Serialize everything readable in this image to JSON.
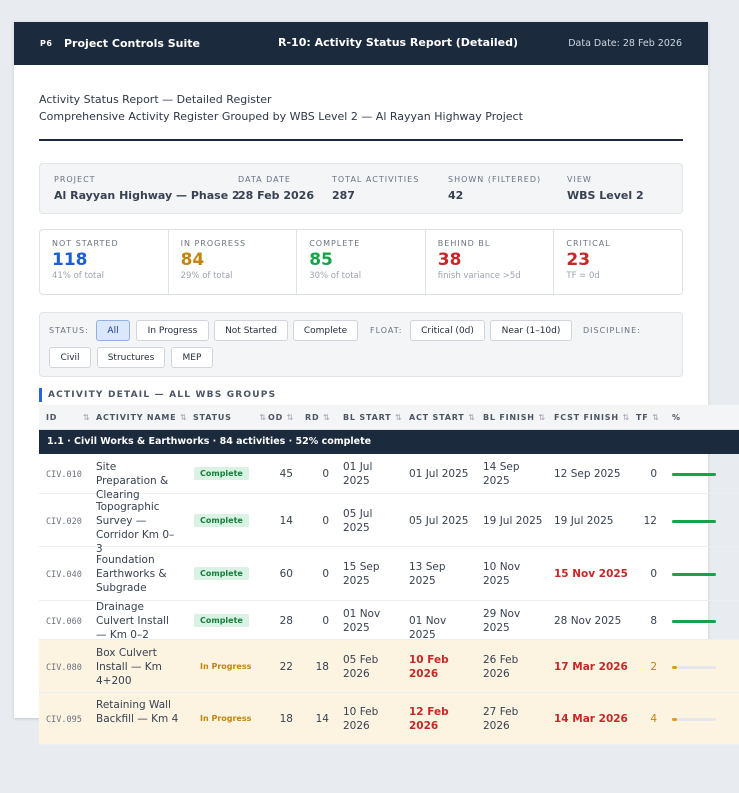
{
  "app": {
    "logo": "P6",
    "name": "Project Controls Suite",
    "report_title": "R-10: Activity Status Report (Detailed)",
    "data_date": "Data Date: 28 Feb 2026"
  },
  "header": {
    "line1": "Activity Status Report — Detailed Register",
    "line2": "Comprehensive Activity Register Grouped by WBS Level 2 — Al Rayyan Highway Project"
  },
  "summary": {
    "project_label": "PROJECT",
    "project_value": "Al Rayyan Highway — Phase 2",
    "date_label": "DATA DATE",
    "date_value": "28 Feb 2026",
    "total_label": "TOTAL ACTIVITIES",
    "total_value": "287",
    "shown_label": "SHOWN (FILTERED)",
    "shown_value": "42",
    "view_label": "VIEW",
    "view_value": "WBS Level 2"
  },
  "stats": [
    {
      "label": "NOT STARTED",
      "value": "118",
      "sub": "41% of total",
      "color": "#1d5fd1"
    },
    {
      "label": "IN PROGRESS",
      "value": "84",
      "sub": "29% of total",
      "color": "#c2850d"
    },
    {
      "label": "COMPLETE",
      "value": "85",
      "sub": "30% of total",
      "color": "#16a34a"
    },
    {
      "label": "BEHIND BL",
      "value": "38",
      "sub": "finish variance >5d",
      "color": "#c62828"
    },
    {
      "label": "CRITICAL",
      "value": "23",
      "sub": "TF = 0d",
      "color": "#c62828"
    }
  ],
  "filters": {
    "status_label": "STATUS:",
    "status": [
      "All",
      "In Progress",
      "Not Started",
      "Complete"
    ],
    "float_label": "FLOAT:",
    "float": [
      "Critical (0d)",
      "Near (1–10d)"
    ],
    "discipline_label": "DISCIPLINE:",
    "discipline": [
      "Civil",
      "Structures",
      "MEP"
    ]
  },
  "section_title": "ACTIVITY DETAIL — ALL WBS GROUPS",
  "columns": [
    "ID",
    "ACTIVITY NAME",
    "STATUS",
    "OD",
    "RD",
    "BL START",
    "ACT START",
    "BL FINISH",
    "FCST FINISH",
    "TF",
    "%"
  ],
  "group": "1.1 · Civil Works & Earthworks · 84 activities · 52% complete",
  "rows": [
    {
      "id": "CIV.010",
      "name": "Site Preparation & Clearing",
      "status": "Complete",
      "od": "45",
      "rd": "0",
      "bl_start": "01 Jul 2025",
      "act_start": "01 Jul 2025",
      "bl_finish": "14 Sep 2025",
      "fcst": "12 Sep 2025",
      "tf": "0",
      "pct": 100
    },
    {
      "id": "CIV.020",
      "name": "Topographic Survey — Corridor Km 0–3",
      "status": "Complete",
      "od": "14",
      "rd": "0",
      "bl_start": "05 Jul 2025",
      "act_start": "05 Jul 2025",
      "bl_finish": "19 Jul 2025",
      "fcst": "19 Jul 2025",
      "tf": "12",
      "pct": 100
    },
    {
      "id": "CIV.040",
      "name": "Foundation Earthworks & Subgrade",
      "status": "Complete",
      "od": "60",
      "rd": "0",
      "bl_start": "15 Sep 2025",
      "act_start": "13 Sep 2025",
      "bl_finish": "10 Nov 2025",
      "fcst": "15 Nov 2025",
      "tf": "0",
      "pct": 100
    },
    {
      "id": "CIV.060",
      "name": "Drainage Culvert Install — Km 0–2",
      "status": "Complete",
      "od": "28",
      "rd": "0",
      "bl_start": "01 Nov 2025",
      "act_start": "01 Nov 2025",
      "bl_finish": "29 Nov 2025",
      "fcst": "28 Nov 2025",
      "tf": "8",
      "pct": 100
    },
    {
      "id": "CIV.080",
      "name": "Box Culvert Install — Km 4+200",
      "status": "In Progress",
      "od": "22",
      "rd": "18",
      "bl_start": "05 Feb 2026",
      "act_start": "10 Feb 2026",
      "bl_finish": "26 Feb 2026",
      "fcst": "17 Mar 2026",
      "tf": "2",
      "pct": 18
    },
    {
      "id": "CIV.095",
      "name": "Retaining Wall Backfill — Km 4",
      "status": "In Progress",
      "od": "18",
      "rd": "14",
      "bl_start": "10 Feb 2026",
      "act_start": "12 Feb 2026",
      "bl_finish": "27 Feb 2026",
      "fcst": "14 Mar 2026",
      "tf": "4",
      "pct": 22
    }
  ],
  "colors": {
    "navy": "#1c2a3d",
    "green": "#16a34a",
    "amber": "#e39b17",
    "red": "#c62828"
  }
}
